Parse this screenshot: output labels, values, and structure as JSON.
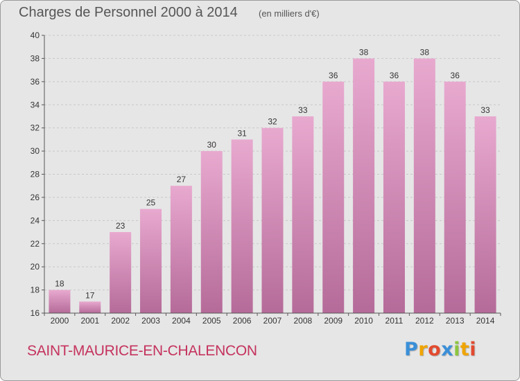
{
  "title": "Charges de Personnel 2000 à 2014",
  "subtitle": "(en milliers d'€)",
  "commune": "SAINT-MAURICE-EN-CHALENCON",
  "logo": {
    "text": "Proxiti",
    "colors": [
      "#3a8fd8",
      "#f0a400",
      "#e24a2f",
      "#3a8fd8",
      "#8cc63f",
      "#f0a400",
      "#e24a2f"
    ]
  },
  "colors": {
    "bar_top": "#e8a9cf",
    "bar_bottom": "#b56b99",
    "grid": "#c8c8c8",
    "accent": "#c4325d"
  },
  "chart_data": {
    "type": "bar",
    "title": "Charges de Personnel 2000 à 2014",
    "subtitle": "(en milliers d'€)",
    "categories": [
      "2000",
      "2001",
      "2002",
      "2003",
      "2004",
      "2005",
      "2006",
      "2007",
      "2008",
      "2009",
      "2010",
      "2011",
      "2012",
      "2013",
      "2014"
    ],
    "values": [
      18,
      17,
      23,
      25,
      27,
      30,
      31,
      32,
      33,
      36,
      38,
      36,
      38,
      36,
      33
    ],
    "ylim": [
      16,
      40
    ],
    "yticks": [
      16,
      18,
      20,
      22,
      24,
      26,
      28,
      30,
      32,
      34,
      36,
      38,
      40
    ],
    "grid": true
  }
}
